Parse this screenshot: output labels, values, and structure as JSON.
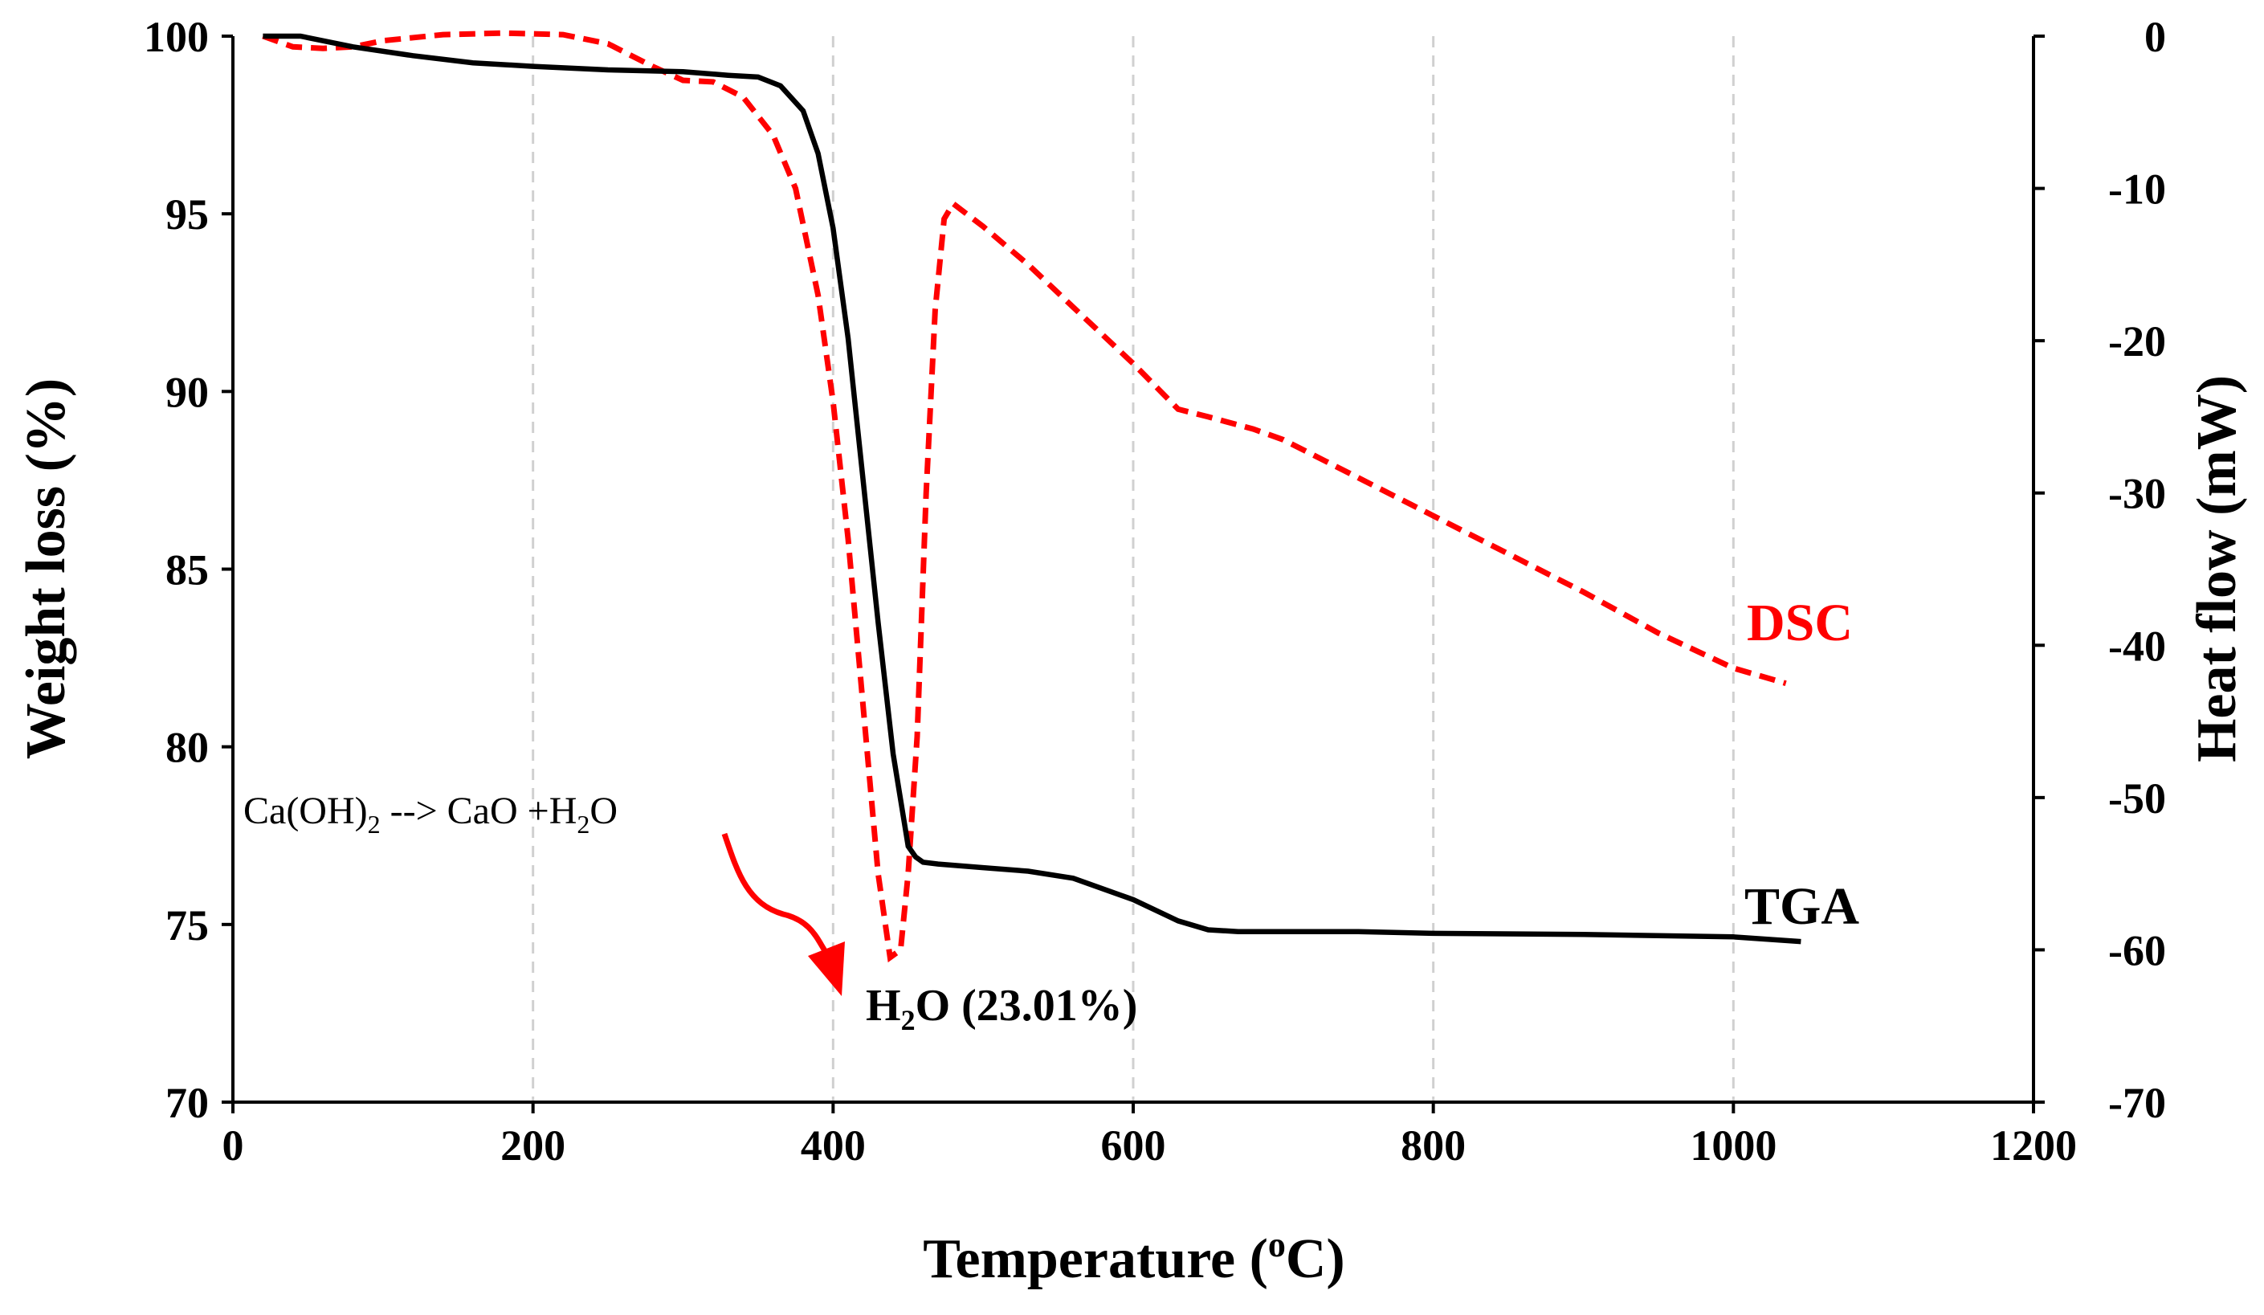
{
  "chart_data": {
    "type": "line",
    "xlabel": "Temperature (",
    "xlabel_sup": "o",
    "xlabel_end": "C)",
    "ylabel_left": "Weight loss (%)",
    "ylabel_right": "Heat flow (mW)",
    "xlim": [
      0,
      1200
    ],
    "ylim_left": [
      70,
      100
    ],
    "ylim_right": [
      -70,
      0
    ],
    "x_ticks": [
      "0",
      "200",
      "400",
      "600",
      "800",
      "1000",
      "1200"
    ],
    "y_left_ticks": [
      "70",
      "75",
      "80",
      "85",
      "90",
      "95",
      "100"
    ],
    "y_right_ticks": [
      "0",
      "-10",
      "-20",
      "-30",
      "-40",
      "-50",
      "-60",
      "-70"
    ],
    "grid": "vertical dashed",
    "colors": {
      "tga": "#000000",
      "dsc": "#ff0000",
      "grid": "#d0d0d0"
    },
    "series": [
      {
        "name": "TGA",
        "axis": "left",
        "style": "solid",
        "x": [
          20,
          45,
          80,
          120,
          160,
          200,
          250,
          300,
          330,
          350,
          365,
          380,
          390,
          400,
          410,
          420,
          430,
          440,
          450,
          455,
          460,
          470,
          500,
          530,
          560,
          600,
          630,
          650,
          670,
          700,
          750,
          800,
          900,
          1000,
          1045
        ],
        "values": [
          100,
          100,
          99.7,
          99.45,
          99.25,
          99.15,
          99.05,
          99.0,
          98.9,
          98.85,
          98.6,
          97.9,
          96.7,
          94.6,
          91.5,
          87.5,
          83.5,
          79.8,
          77.2,
          76.9,
          76.75,
          76.7,
          76.6,
          76.5,
          76.3,
          75.7,
          75.1,
          74.85,
          74.8,
          74.8,
          74.8,
          74.75,
          74.72,
          74.65,
          74.52
        ]
      },
      {
        "name": "DSC",
        "axis": "right",
        "style": "dashed",
        "x": [
          20,
          40,
          60,
          80,
          100,
          140,
          180,
          220,
          250,
          280,
          300,
          320,
          340,
          360,
          375,
          390,
          400,
          410,
          420,
          430,
          438,
          445,
          450,
          456,
          462,
          468,
          474,
          480,
          500,
          530,
          560,
          600,
          630,
          650,
          680,
          700,
          750,
          800,
          850,
          900,
          950,
          1000,
          1035
        ],
        "values": [
          0,
          -0.7,
          -0.8,
          -0.7,
          -0.3,
          0.1,
          0.2,
          0.1,
          -0.5,
          -2.0,
          -2.9,
          -3.0,
          -4.0,
          -6.5,
          -10,
          -17,
          -24,
          -33,
          -44,
          -55,
          -60.5,
          -60.0,
          -55,
          -46,
          -30,
          -18,
          -12,
          -11,
          -12.5,
          -15,
          -17.8,
          -21.5,
          -24.5,
          -25,
          -25.8,
          -26.5,
          -29,
          -31.5,
          -34,
          -36.5,
          -39.2,
          -41.5,
          -42.5
        ]
      }
    ],
    "series_labels": {
      "dsc": "DSC",
      "tga": "TGA"
    },
    "annotations": {
      "reaction_a": "Ca(OH)",
      "reaction_sub_a": "2",
      "reaction_b": " --> CaO +H",
      "reaction_sub_b": "2",
      "reaction_c": "O",
      "water_a": "H",
      "water_sub": "2",
      "water_b": "O (23.01%)"
    }
  }
}
